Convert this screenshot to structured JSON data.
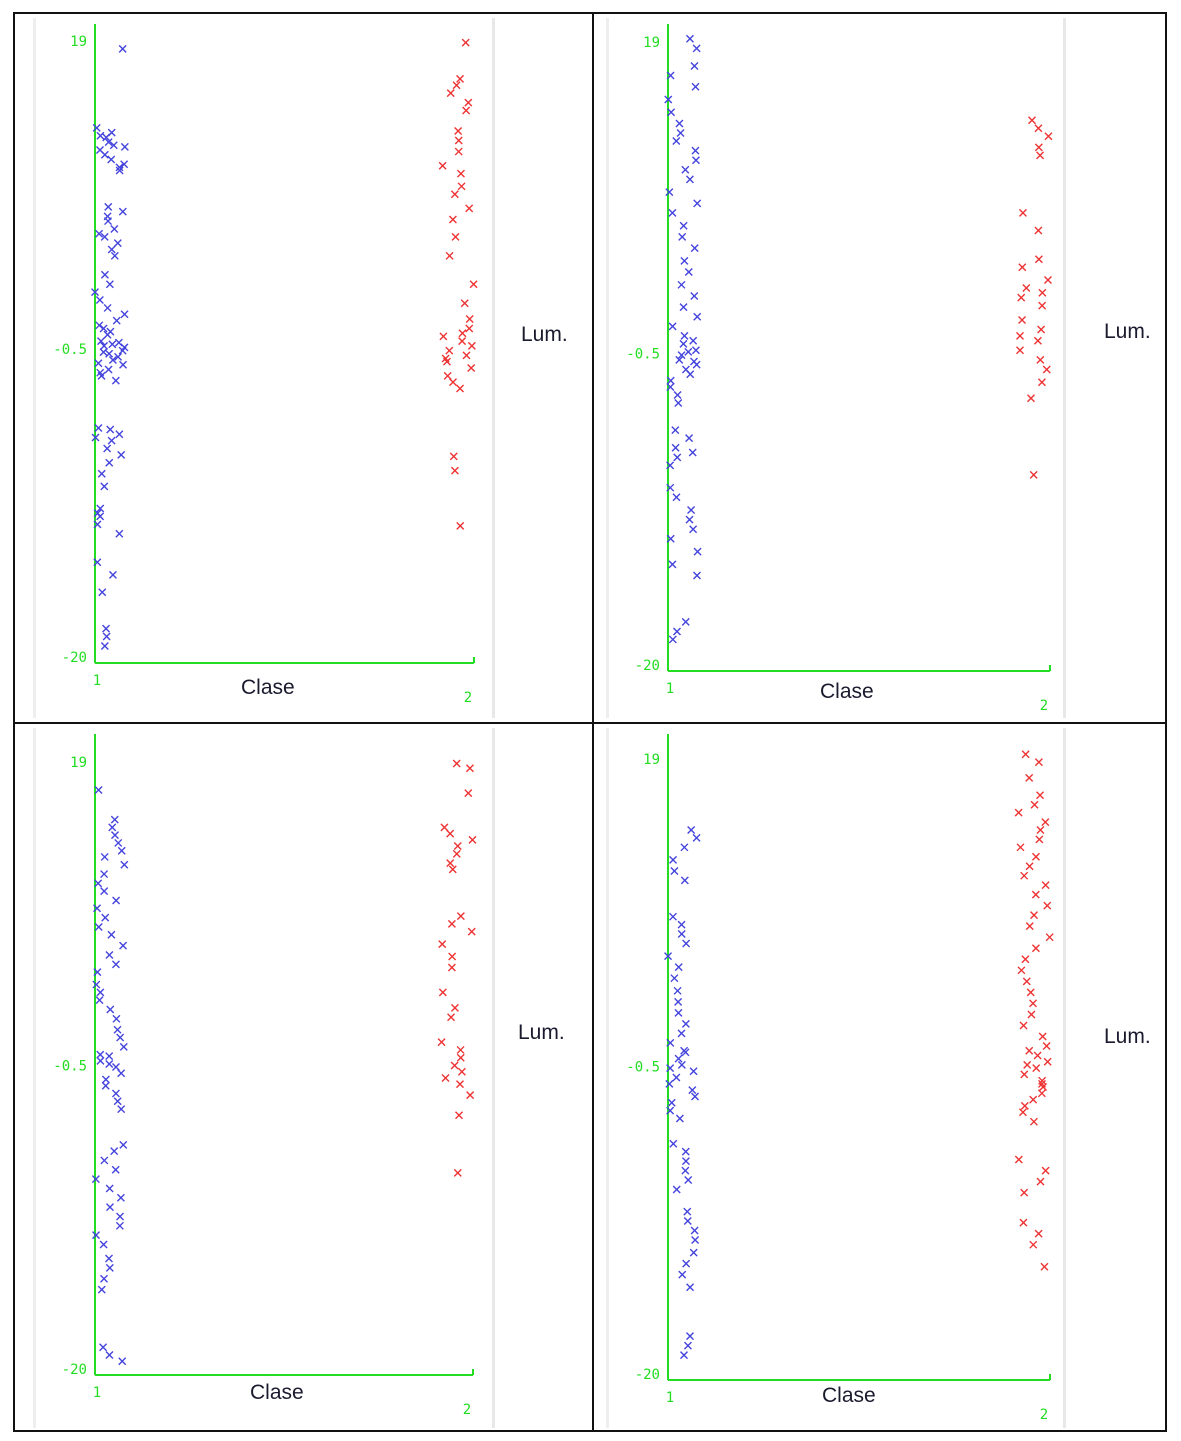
{
  "chart_data": [
    {
      "type": "scatter",
      "xlabel": "Clase",
      "ylabel": "Lum.",
      "xticks": [
        "1",
        "2"
      ],
      "yticks": [
        "19",
        "-0.5",
        "-20"
      ],
      "ylim": [
        -20,
        19
      ],
      "series": [
        {
          "color": "#4444dd",
          "x": 1,
          "y": [
            18.5,
            13.5,
            13.2,
            12.9,
            12.6,
            12.4,
            12.1,
            11.8,
            11.5,
            11.2,
            10.8,
            13.0,
            12.3,
            11.0,
            8.5,
            8.2,
            7.6,
            7.1,
            6.6,
            6.2,
            5.8,
            5.4,
            7.9,
            6.8,
            4.2,
            3.6,
            3.1,
            2.6,
            2.1,
            1.7,
            1.3,
            0.8,
            0.4,
            0.0,
            -0.2,
            -0.4,
            -0.6,
            -0.8,
            -1.0,
            -1.2,
            -1.5,
            -1.8,
            -2.2,
            -2.5,
            -0.1,
            -0.7,
            0.6,
            1.0,
            -1.4,
            -0.3,
            -5.5,
            -5.9,
            -6.3,
            -6.8,
            -7.2,
            -7.7,
            -8.4,
            -9.2,
            -10.6,
            -11.1,
            -11.6,
            -12.2,
            -6.1,
            -10.9,
            -14.0,
            -14.8,
            -15.9,
            -18.7,
            -19.3,
            -18.2,
            -5.6,
            -2.0
          ]
        },
        {
          "color": "#ee3333",
          "x": 2,
          "y": [
            18.9,
            16.6,
            16.2,
            15.7,
            15.1,
            14.6,
            13.3,
            12.7,
            12.0,
            11.1,
            10.6,
            9.8,
            9.3,
            8.4,
            7.7,
            6.6,
            5.4,
            3.6,
            2.4,
            1.4,
            0.8,
            0.3,
            0.0,
            -0.3,
            -0.6,
            -0.9,
            -1.3,
            -1.7,
            -2.2,
            -2.6,
            -3.0,
            -7.3,
            -8.2,
            -11.7,
            -1.1,
            0.5
          ]
        }
      ]
    },
    {
      "type": "scatter",
      "xlabel": "Clase",
      "ylabel": "Lum.",
      "xticks": [
        "1",
        "2"
      ],
      "yticks": [
        "19",
        "-0.5",
        "-20"
      ],
      "ylim": [
        -20,
        19
      ],
      "series": [
        {
          "color": "#4444dd",
          "x": 1,
          "y": [
            19.2,
            18.6,
            17.5,
            16.9,
            16.2,
            15.4,
            14.6,
            13.9,
            13.3,
            12.8,
            12.2,
            11.6,
            11.0,
            10.4,
            9.6,
            8.9,
            8.3,
            7.5,
            6.8,
            6.1,
            5.3,
            4.6,
            3.8,
            3.1,
            2.4,
            1.8,
            1.2,
            0.6,
            0.1,
            -0.3,
            -0.6,
            -0.9,
            -1.2,
            -1.5,
            -1.8,
            -2.2,
            -2.6,
            -3.1,
            -3.6,
            -5.3,
            -5.8,
            -6.4,
            -7.0,
            -7.5,
            -8.9,
            -9.5,
            -10.3,
            -10.9,
            -11.5,
            -12.1,
            -12.9,
            -13.7,
            -14.4,
            -17.3,
            -17.9,
            -18.4,
            -0.4,
            0.3,
            -1.0,
            -6.7
          ]
        },
        {
          "color": "#ee3333",
          "x": 2,
          "y": [
            14.1,
            13.6,
            13.1,
            12.4,
            11.9,
            8.3,
            7.2,
            5.4,
            4.9,
            4.1,
            3.6,
            3.0,
            2.5,
            1.6,
            1.0,
            0.3,
            -0.3,
            -0.9,
            -1.5,
            -2.3,
            -3.3,
            -8.1,
            3.3,
            0.6
          ]
        }
      ]
    },
    {
      "type": "scatter",
      "xlabel": "Clase",
      "ylabel": "Lum.",
      "xticks": [
        "1",
        "2"
      ],
      "yticks": [
        "19",
        "-0.5",
        "-20"
      ],
      "ylim": [
        -20,
        19
      ],
      "series": [
        {
          "color": "#4444dd",
          "x": 1,
          "y": [
            17.2,
            15.3,
            14.8,
            14.3,
            13.8,
            13.3,
            12.9,
            12.4,
            11.8,
            11.2,
            10.7,
            10.1,
            9.6,
            9.0,
            8.4,
            7.9,
            7.2,
            6.6,
            6.0,
            5.5,
            4.7,
            4.2,
            3.7,
            3.1,
            2.5,
            1.8,
            1.3,
            0.7,
            0.2,
            -0.2,
            -0.6,
            -1.0,
            -1.4,
            -1.8,
            -2.3,
            -2.8,
            -3.3,
            -5.6,
            -6.0,
            -6.6,
            -7.2,
            -7.8,
            -8.4,
            -9.0,
            -9.6,
            -10.2,
            -10.8,
            -11.4,
            -12.0,
            -12.9,
            -13.5,
            -14.2,
            -14.9,
            -18.6,
            -19.1,
            -19.5,
            -0.4,
            0.1
          ]
        },
        {
          "color": "#ee3333",
          "x": 2,
          "y": [
            18.9,
            18.6,
            17.0,
            14.8,
            14.4,
            14.0,
            13.6,
            13.1,
            12.5,
            12.1,
            9.1,
            8.6,
            8.1,
            7.3,
            6.5,
            5.8,
            4.2,
            3.2,
            2.6,
            1.0,
            0.5,
            0.0,
            -0.5,
            -0.9,
            -1.3,
            -1.7,
            -2.4,
            -3.7,
            -7.4
          ]
        }
      ]
    },
    {
      "type": "scatter",
      "xlabel": "Clase",
      "ylabel": "Lum.",
      "xticks": [
        "1",
        "2"
      ],
      "yticks": [
        "19",
        "-0.5",
        "-20"
      ],
      "ylim": [
        -20,
        19
      ],
      "series": [
        {
          "color": "#4444dd",
          "x": 1,
          "y": [
            14.5,
            14.0,
            13.4,
            12.6,
            11.9,
            11.3,
            9.0,
            8.5,
            7.9,
            7.3,
            6.5,
            5.8,
            5.1,
            4.3,
            3.6,
            2.9,
            2.2,
            1.6,
            1.0,
            0.5,
            0.0,
            -0.4,
            -0.8,
            -1.2,
            -1.6,
            -2.0,
            -2.4,
            -2.8,
            -3.3,
            -3.8,
            -5.4,
            -5.9,
            -6.5,
            -7.1,
            -7.7,
            -8.3,
            -9.7,
            -10.3,
            -10.9,
            -11.5,
            -12.3,
            -13.0,
            -13.7,
            -14.5,
            -17.6,
            -18.2,
            -18.8,
            -0.6,
            0.4
          ]
        },
        {
          "color": "#ee3333",
          "x": 2,
          "y": [
            19.3,
            18.8,
            17.8,
            16.7,
            16.1,
            15.6,
            15.0,
            14.5,
            13.9,
            13.4,
            12.8,
            12.2,
            11.6,
            11.0,
            10.4,
            9.7,
            9.1,
            8.4,
            7.7,
            7.0,
            6.3,
            5.6,
            4.9,
            4.2,
            3.5,
            2.8,
            2.1,
            1.4,
            0.8,
            0.2,
            -0.2,
            -0.6,
            -1.0,
            -1.4,
            -1.8,
            -2.2,
            -2.6,
            -3.0,
            -3.4,
            -4.0,
            -6.4,
            -7.1,
            -7.8,
            -8.5,
            -10.4,
            -11.1,
            -11.8,
            -13.2,
            -0.4,
            -1.6,
            0.5
          ]
        }
      ]
    }
  ]
}
